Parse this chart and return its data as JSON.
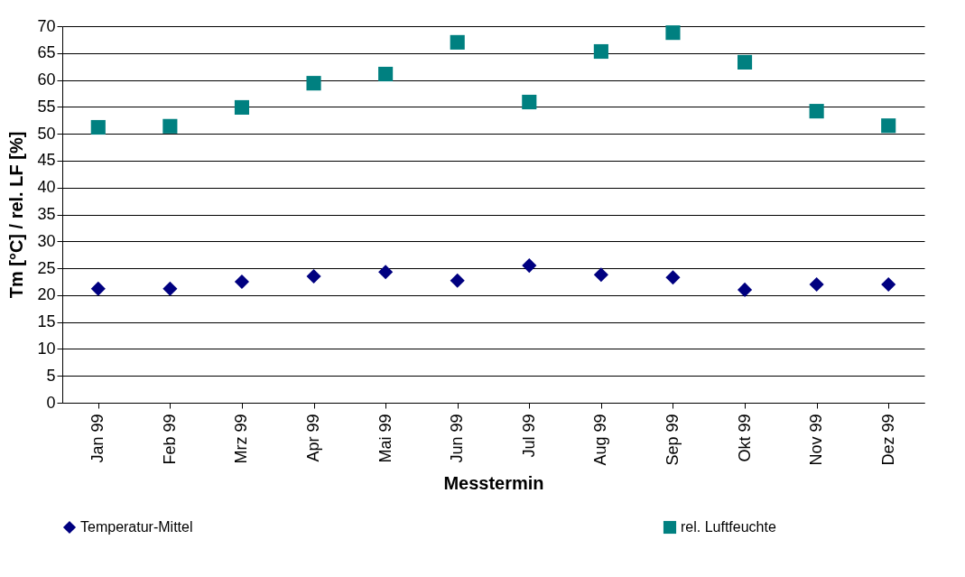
{
  "chart_data": {
    "type": "scatter",
    "xlabel": "Messtermin",
    "ylabel": "Tm [°C] / rel. LF [%]",
    "categories": [
      "Jan 99",
      "Feb 99",
      "Mrz 99",
      "Apr 99",
      "Mai 99",
      "Jun 99",
      "Jul 99",
      "Aug 99",
      "Sep 99",
      "Okt 99",
      "Nov 99",
      "Dez 99"
    ],
    "series": [
      {
        "name": "Temperatur-Mittel",
        "color": "#000080",
        "marker": "diamond",
        "values": [
          21.2,
          21.2,
          22.5,
          23.5,
          24.3,
          22.7,
          25.5,
          23.8,
          23.3,
          21.0,
          22.0,
          22.0
        ]
      },
      {
        "name": "rel. Luftfeuchte",
        "color": "#008080",
        "marker": "square",
        "values": [
          51.2,
          51.4,
          54.9,
          59.4,
          61.1,
          67.0,
          55.9,
          65.3,
          68.8,
          63.3,
          54.2,
          51.5
        ]
      }
    ],
    "ylim": [
      0,
      70
    ],
    "yticks": [
      0,
      5,
      10,
      15,
      20,
      25,
      30,
      35,
      40,
      45,
      50,
      55,
      60,
      65,
      70
    ],
    "grid": "y",
    "legend": "bottom"
  }
}
